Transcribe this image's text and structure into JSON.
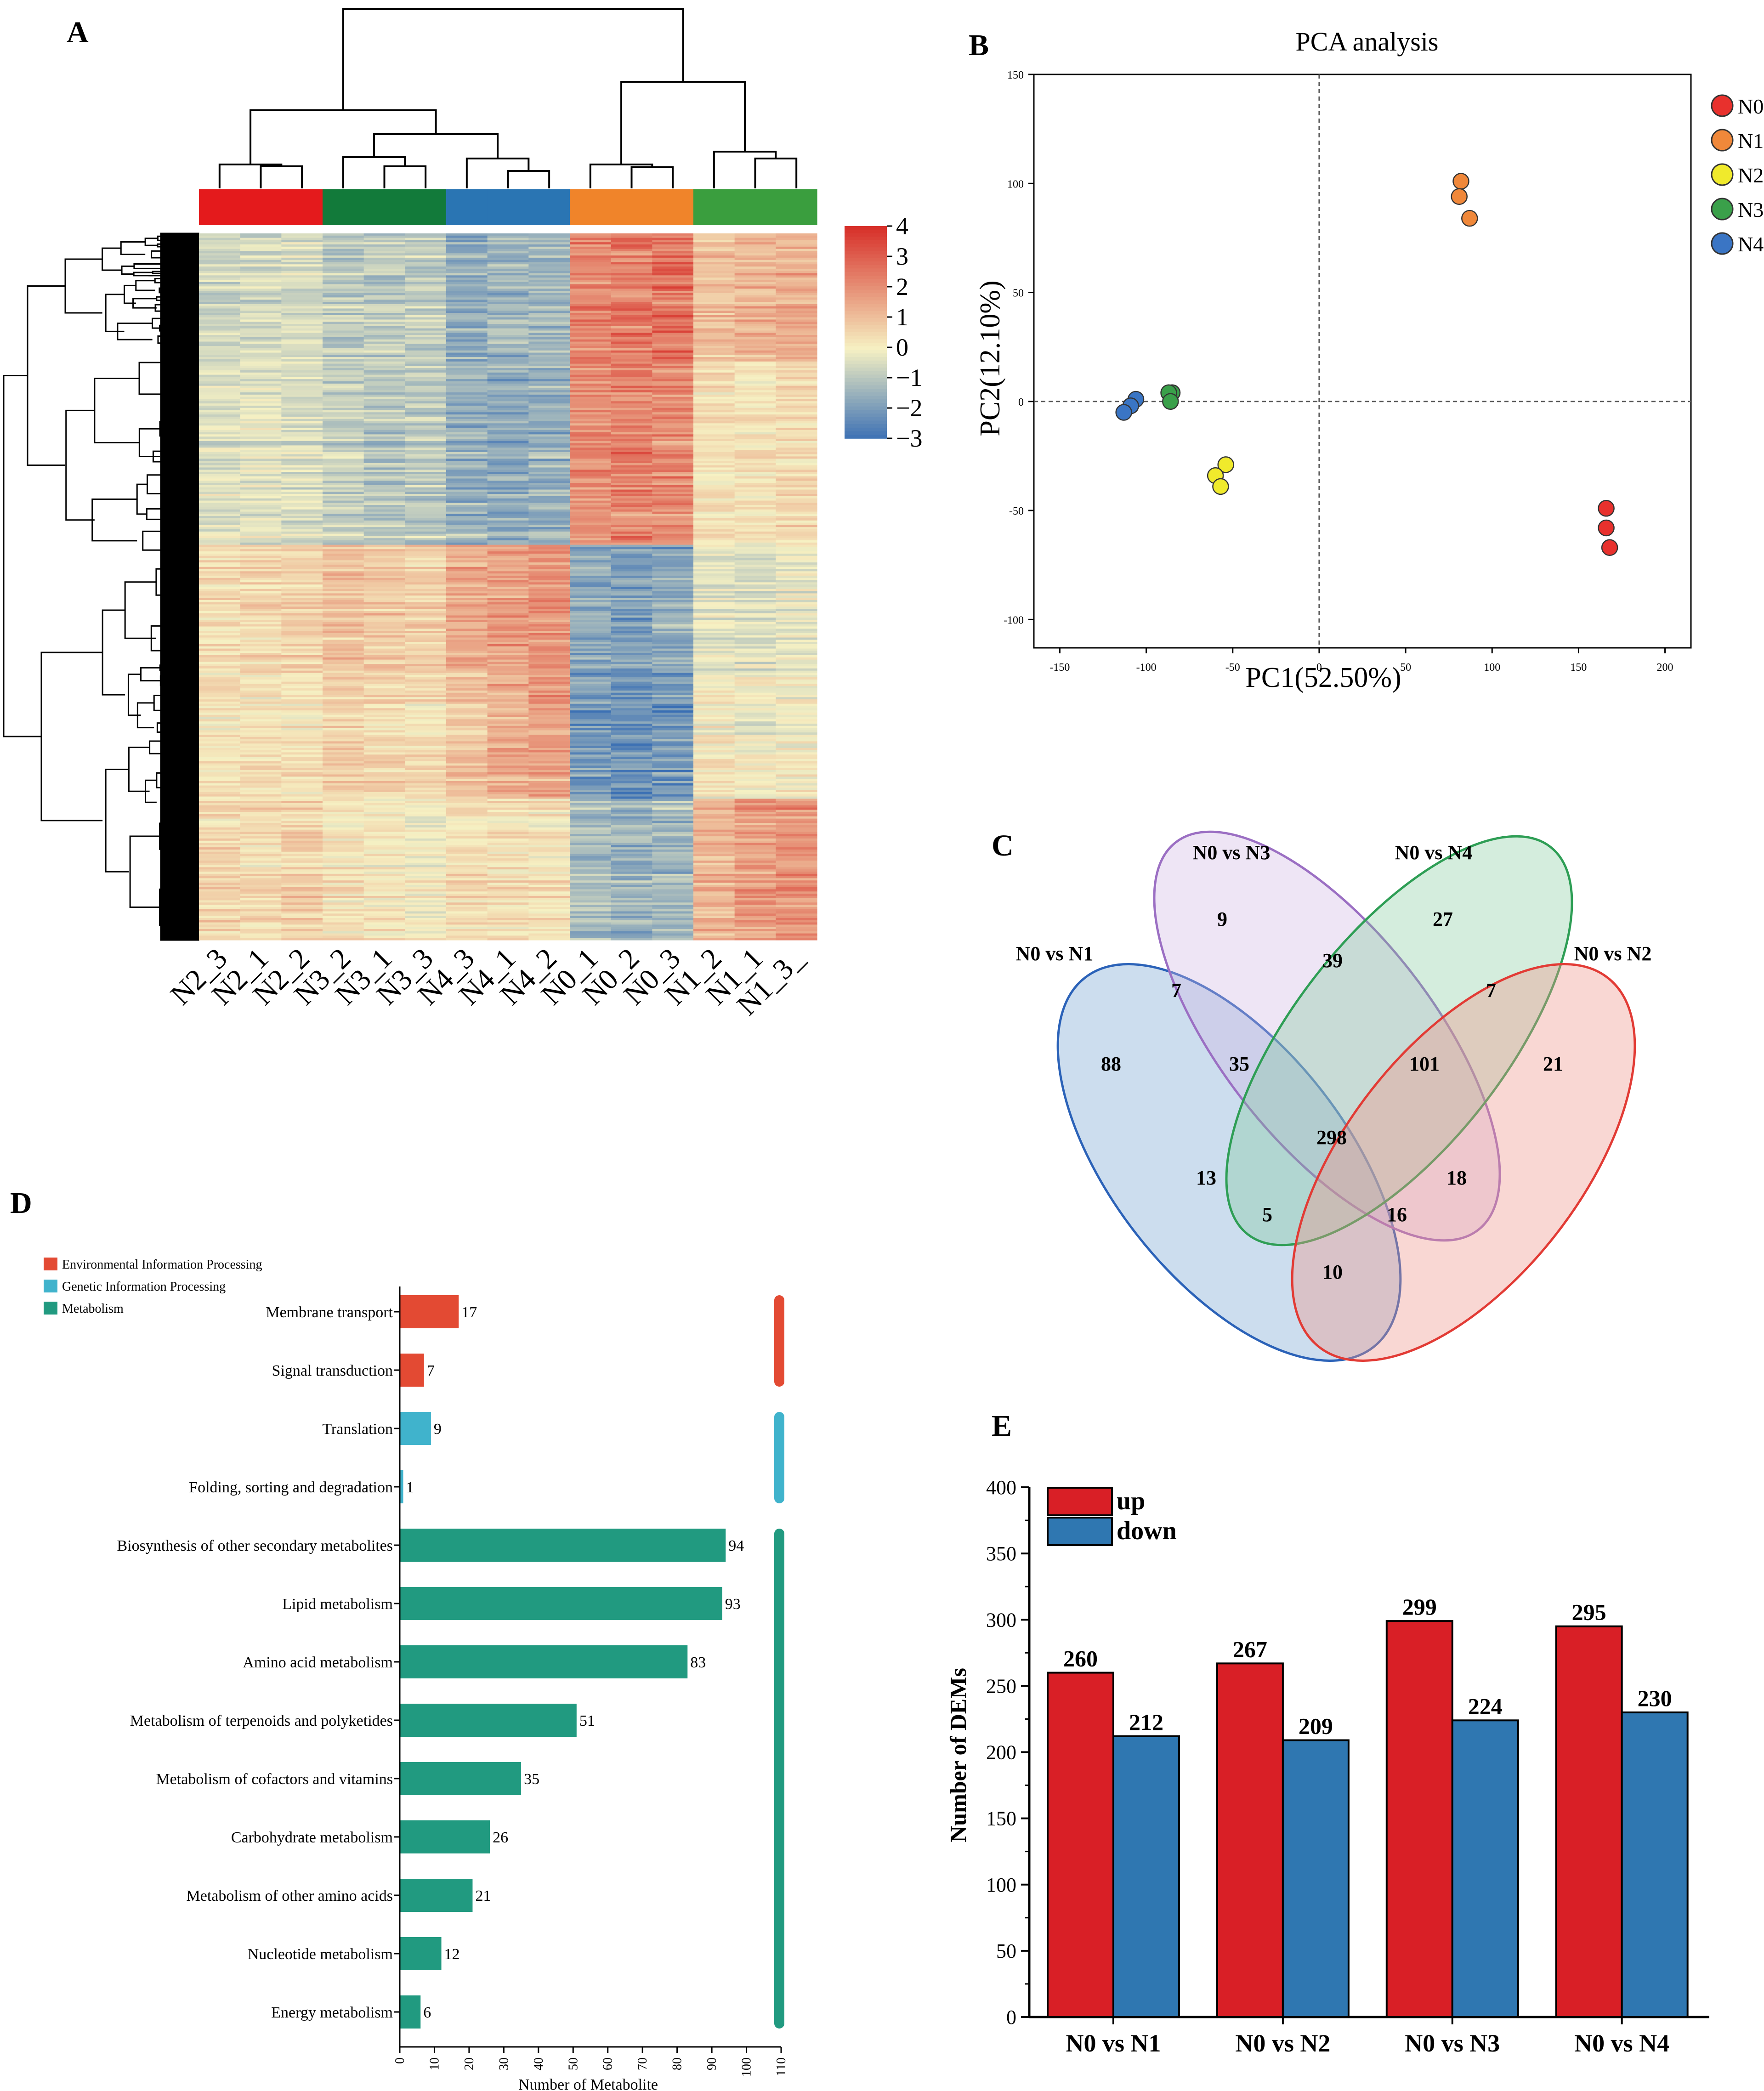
{
  "panels": {
    "A": "A",
    "B": "B",
    "C": "C",
    "D": "D",
    "E": "E"
  },
  "chart_data": [
    {
      "panel": "A",
      "type": "heatmap",
      "title": "",
      "group_colors": {
        "N2": "#e41a1c",
        "N3": "#127a3a",
        "N4": "#2a75b3",
        "N0": "#f0842a",
        "N1": "#3a9e3e"
      },
      "groups": [
        "N2",
        "N3",
        "N4",
        "N0",
        "N1"
      ],
      "columns": [
        "N2_3",
        "N2_1",
        "N2_2",
        "N3_2",
        "N3_1",
        "N3_3",
        "N4_3",
        "N4_1",
        "N4_2",
        "N0_1",
        "N0_2",
        "N0_3",
        "N1_2",
        "N1_1",
        "N1_3_"
      ],
      "column_groups": [
        "N2",
        "N2",
        "N2",
        "N3",
        "N3",
        "N3",
        "N4",
        "N4",
        "N4",
        "N0",
        "N0",
        "N0",
        "N1",
        "N1",
        "N1"
      ],
      "row_block_means": [
        {
          "label": "block1",
          "values": [
            -0.6,
            -0.5,
            -0.5,
            -0.9,
            -0.9,
            -0.8,
            -1.6,
            -1.4,
            -1.3,
            2.2,
            2.4,
            2.6,
            1.0,
            1.2,
            1.4
          ]
        },
        {
          "label": "block2",
          "values": [
            -0.4,
            -0.3,
            -0.4,
            -0.8,
            -1.0,
            -0.9,
            -1.5,
            -1.6,
            -1.4,
            2.0,
            2.2,
            2.1,
            0.4,
            0.3,
            0.5
          ]
        },
        {
          "label": "block3",
          "values": [
            0.4,
            0.5,
            0.6,
            0.9,
            0.8,
            0.7,
            1.4,
            1.6,
            1.9,
            -1.8,
            -1.9,
            -1.7,
            -0.3,
            -0.4,
            -0.2
          ]
        },
        {
          "label": "block4",
          "values": [
            0.3,
            0.3,
            0.2,
            0.6,
            0.5,
            0.4,
            0.9,
            1.4,
            1.6,
            -2.0,
            -2.2,
            -2.1,
            0.1,
            -0.1,
            0.0
          ]
        },
        {
          "label": "block5",
          "values": [
            0.6,
            0.5,
            0.7,
            0.3,
            0.2,
            0.1,
            0.5,
            0.4,
            0.3,
            -1.2,
            -1.4,
            -1.3,
            1.3,
            1.8,
            1.9
          ]
        }
      ],
      "color_scale": {
        "min": -3,
        "max": 4,
        "ticks": [
          "4",
          "3",
          "2",
          "1",
          "0",
          "−1",
          "−2",
          "−3"
        ]
      },
      "colors": {
        "low": "#3a6fb4",
        "mid": "#f6f1c3",
        "high": "#d7302a"
      }
    },
    {
      "panel": "B",
      "type": "scatter",
      "title": "PCA analysis",
      "xlabel": "PC1(52.50%)",
      "ylabel": "PC2(12.10%)",
      "xlim": [
        -165,
        215
      ],
      "ylim": [
        -113,
        150
      ],
      "xticks": [
        -150,
        -100,
        -50,
        0,
        50,
        100,
        150,
        200
      ],
      "yticks": [
        -100,
        -50,
        0,
        50,
        100,
        150
      ],
      "series": [
        {
          "name": "N0",
          "color": "#e8312d",
          "points": [
            [
              166,
              -49
            ],
            [
              166,
              -58
            ],
            [
              168,
              -67
            ]
          ]
        },
        {
          "name": "N1",
          "color": "#f0883a",
          "points": [
            [
              82,
              101
            ],
            [
              81,
              94
            ],
            [
              87,
              84
            ]
          ]
        },
        {
          "name": "N2",
          "color": "#f0ea2c",
          "points": [
            [
              -54,
              -29
            ],
            [
              -60,
              -34
            ],
            [
              -57,
              -39
            ]
          ]
        },
        {
          "name": "N3",
          "color": "#3aa04a",
          "points": [
            [
              -85,
              4
            ],
            [
              -87,
              4
            ],
            [
              -86,
              0
            ]
          ]
        },
        {
          "name": "N4",
          "color": "#3a75c4",
          "points": [
            [
              -106,
              1
            ],
            [
              -109,
              -2
            ],
            [
              -113,
              -5
            ]
          ]
        }
      ]
    },
    {
      "panel": "C",
      "type": "venn",
      "sets": [
        {
          "name": "N0 vs N1",
          "color": "#2b62b8",
          "fill": "rgba(120,165,210,0.38)"
        },
        {
          "name": "N0 vs N3",
          "color": "#9b6fc3",
          "fill": "rgba(205,180,225,0.35)"
        },
        {
          "name": "N0 vs N4",
          "color": "#2e9e55",
          "fill": "rgba(120,200,150,0.32)"
        },
        {
          "name": "N0 vs N2",
          "color": "#e23b35",
          "fill": "rgba(240,150,140,0.38)"
        }
      ],
      "counts": [
        {
          "region": "N3 only",
          "value": 9
        },
        {
          "region": "N4 only",
          "value": 27
        },
        {
          "region": "N3 & N4",
          "value": 39
        },
        {
          "region": "N1 & N3",
          "value": 7
        },
        {
          "region": "N4 & N2",
          "value": 7
        },
        {
          "region": "N1 only",
          "value": 88
        },
        {
          "region": "N1 & N3 & N4",
          "value": 35
        },
        {
          "region": "N3 & N4 & N2",
          "value": 101
        },
        {
          "region": "N2 only",
          "value": 21
        },
        {
          "region": "all",
          "value": 298
        },
        {
          "region": "N1 & N4",
          "value": 13
        },
        {
          "region": "N3 & N2",
          "value": 18
        },
        {
          "region": "N1 & N4 & N2",
          "value": 5
        },
        {
          "region": "N1 & N3 & N2",
          "value": 16
        },
        {
          "region": "N1 & N2",
          "value": 10
        }
      ]
    },
    {
      "panel": "D",
      "type": "bar",
      "orientation": "horizontal",
      "xlabel": "Number of Metabolite",
      "xlim": [
        0,
        110
      ],
      "xticks": [
        0,
        10,
        20,
        30,
        40,
        50,
        60,
        70,
        80,
        90,
        100,
        110
      ],
      "legend": [
        {
          "name": "Environmental Information Processing",
          "color": "#e34a33"
        },
        {
          "name": "Genetic Information Processing",
          "color": "#40b3cc"
        },
        {
          "name": "Metabolism",
          "color": "#219a80"
        }
      ],
      "categories": [
        "Membrane transport",
        "Signal transduction",
        "Translation",
        "Folding, sorting and degradation",
        "Biosynthesis of other secondary metabolites",
        "Lipid metabolism",
        "Amino acid metabolism",
        "Metabolism of terpenoids and polyketides",
        "Metabolism of cofactors and vitamins",
        "Carbohydrate metabolism",
        "Metabolism of other amino acids",
        "Nucleotide metabolism",
        "Energy metabolism"
      ],
      "values": [
        17,
        7,
        9,
        1,
        94,
        93,
        83,
        51,
        35,
        26,
        21,
        12,
        6
      ],
      "category_class": [
        0,
        0,
        1,
        1,
        2,
        2,
        2,
        2,
        2,
        2,
        2,
        2,
        2
      ]
    },
    {
      "panel": "E",
      "type": "bar",
      "ylabel": "Number of DEMs",
      "ylim": [
        0,
        400
      ],
      "yticks": [
        0,
        50,
        100,
        150,
        200,
        250,
        300,
        350,
        400
      ],
      "categories": [
        "N0 vs N1",
        "N0 vs N2",
        "N0 vs N3",
        "N0 vs N4"
      ],
      "series": [
        {
          "name": "up",
          "color": "#d91f26",
          "values": [
            260,
            267,
            299,
            295
          ]
        },
        {
          "name": "down",
          "color": "#2f77b1",
          "values": [
            212,
            209,
            224,
            230
          ]
        }
      ]
    }
  ]
}
